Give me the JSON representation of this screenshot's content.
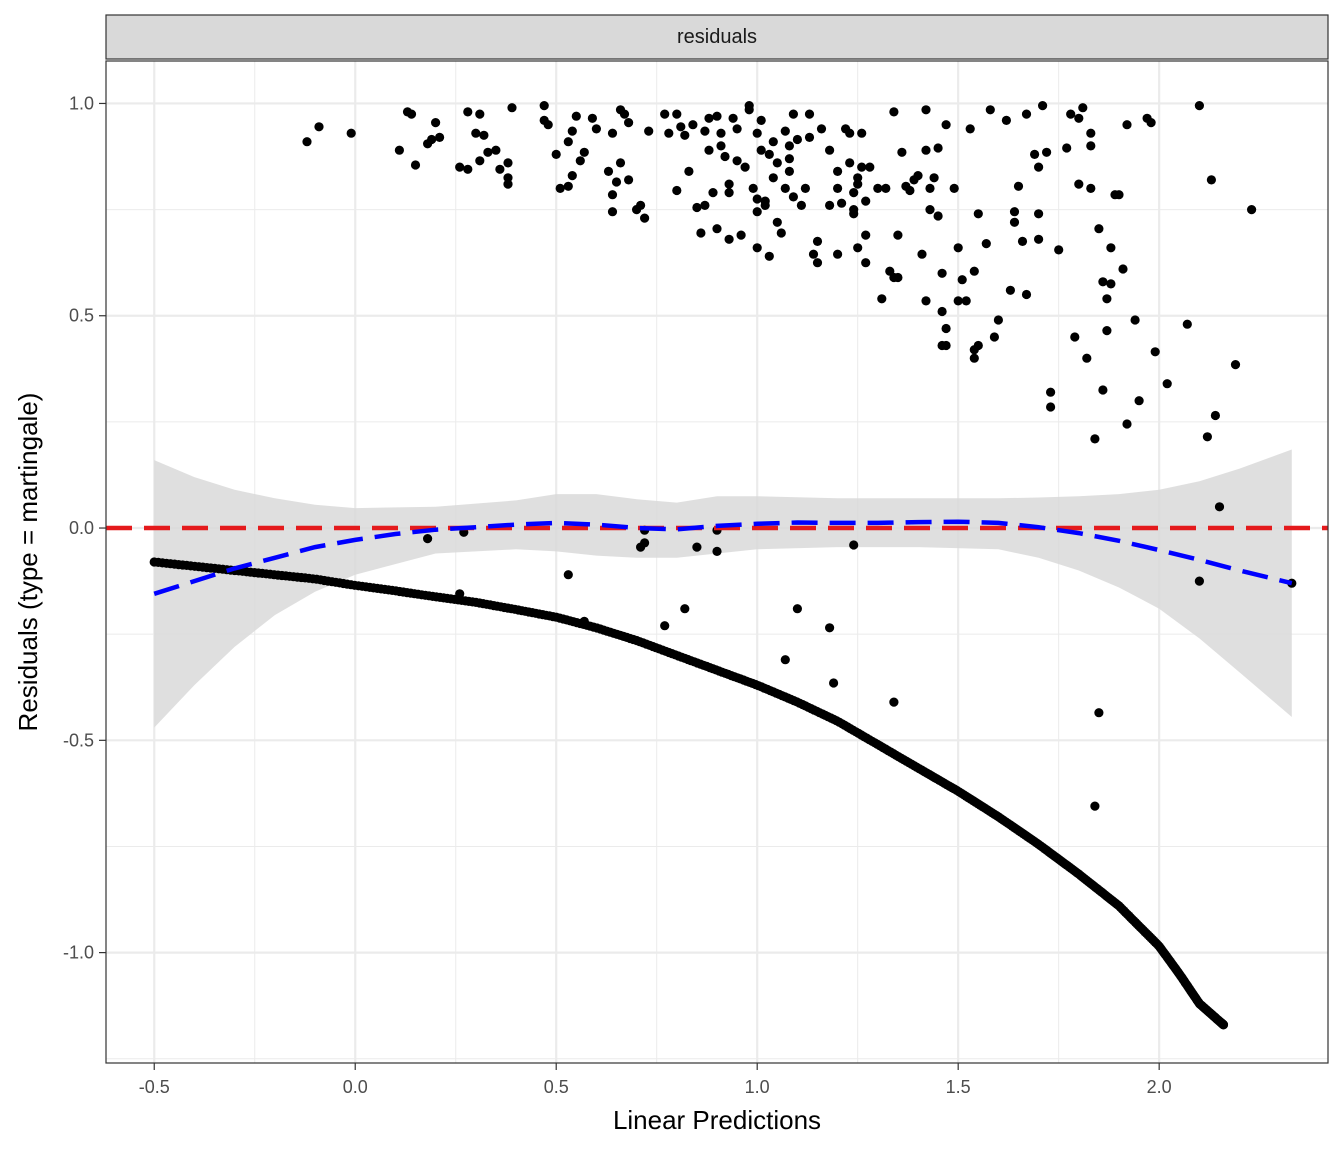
{
  "chart_data": {
    "type": "scatter",
    "panel_label": "residuals",
    "xlabel": "Linear Predictions",
    "ylabel": "Residuals (type = martingale)",
    "xlim": [
      -0.62,
      2.42
    ],
    "ylim": [
      -1.26,
      1.1
    ],
    "x_ticks": [
      -0.5,
      0.0,
      0.5,
      1.0,
      1.5,
      2.0
    ],
    "x_tick_labels": [
      "-0.5",
      "0.0",
      "0.5",
      "1.0",
      "1.5",
      "2.0"
    ],
    "y_ticks": [
      -1.0,
      -0.5,
      0.0,
      0.5,
      1.0
    ],
    "y_tick_labels": [
      "-1.0",
      "-0.5",
      "0.0",
      "0.5",
      "1.0"
    ],
    "grid": true,
    "colors": {
      "points": "#000000",
      "reference_line": "#e41a1c",
      "smooth_line": "#0000ff",
      "confidence_band": "#d9d9d9",
      "strip_background": "#d9d9d9",
      "grid": "#ebebeb"
    },
    "reference_line": {
      "y": 0,
      "style": "dashed"
    },
    "smooth": {
      "style": "dashed",
      "points": [
        [
          -0.5,
          -0.155
        ],
        [
          -0.4,
          -0.125
        ],
        [
          -0.3,
          -0.095
        ],
        [
          -0.2,
          -0.07
        ],
        [
          -0.1,
          -0.045
        ],
        [
          0.0,
          -0.028
        ],
        [
          0.1,
          -0.014
        ],
        [
          0.2,
          -0.004
        ],
        [
          0.3,
          0.002
        ],
        [
          0.4,
          0.008
        ],
        [
          0.5,
          0.012
        ],
        [
          0.6,
          0.008
        ],
        [
          0.7,
          0.0
        ],
        [
          0.8,
          -0.003
        ],
        [
          0.9,
          0.005
        ],
        [
          1.0,
          0.01
        ],
        [
          1.1,
          0.013
        ],
        [
          1.2,
          0.012
        ],
        [
          1.3,
          0.012
        ],
        [
          1.4,
          0.014
        ],
        [
          1.5,
          0.015
        ],
        [
          1.6,
          0.012
        ],
        [
          1.7,
          0.002
        ],
        [
          1.8,
          -0.012
        ],
        [
          1.9,
          -0.03
        ],
        [
          2.0,
          -0.052
        ],
        [
          2.1,
          -0.075
        ],
        [
          2.2,
          -0.1
        ],
        [
          2.33,
          -0.13
        ]
      ],
      "band_upper": [
        [
          -0.5,
          0.16
        ],
        [
          -0.4,
          0.12
        ],
        [
          -0.3,
          0.09
        ],
        [
          -0.2,
          0.07
        ],
        [
          -0.1,
          0.055
        ],
        [
          0.0,
          0.047
        ],
        [
          0.2,
          0.05
        ],
        [
          0.4,
          0.065
        ],
        [
          0.5,
          0.08
        ],
        [
          0.6,
          0.08
        ],
        [
          0.7,
          0.068
        ],
        [
          0.8,
          0.06
        ],
        [
          0.9,
          0.075
        ],
        [
          1.0,
          0.075
        ],
        [
          1.2,
          0.07
        ],
        [
          1.4,
          0.07
        ],
        [
          1.6,
          0.07
        ],
        [
          1.7,
          0.072
        ],
        [
          1.8,
          0.075
        ],
        [
          1.9,
          0.08
        ],
        [
          2.0,
          0.09
        ],
        [
          2.1,
          0.11
        ],
        [
          2.2,
          0.14
        ],
        [
          2.33,
          0.185
        ]
      ],
      "band_lower": [
        [
          -0.5,
          -0.47
        ],
        [
          -0.4,
          -0.37
        ],
        [
          -0.3,
          -0.28
        ],
        [
          -0.2,
          -0.205
        ],
        [
          -0.1,
          -0.15
        ],
        [
          0.0,
          -0.11
        ],
        [
          0.2,
          -0.06
        ],
        [
          0.4,
          -0.05
        ],
        [
          0.5,
          -0.055
        ],
        [
          0.6,
          -0.065
        ],
        [
          0.7,
          -0.07
        ],
        [
          0.8,
          -0.07
        ],
        [
          0.9,
          -0.06
        ],
        [
          1.0,
          -0.05
        ],
        [
          1.2,
          -0.045
        ],
        [
          1.4,
          -0.045
        ],
        [
          1.6,
          -0.05
        ],
        [
          1.7,
          -0.07
        ],
        [
          1.8,
          -0.1
        ],
        [
          1.9,
          -0.14
        ],
        [
          2.0,
          -0.19
        ],
        [
          2.1,
          -0.26
        ],
        [
          2.2,
          -0.34
        ],
        [
          2.33,
          -0.445
        ]
      ]
    },
    "curve_band": {
      "description_points": [
        [
          -0.5,
          -0.08
        ],
        [
          -0.4,
          -0.09
        ],
        [
          -0.3,
          -0.1
        ],
        [
          -0.2,
          -0.11
        ],
        [
          -0.1,
          -0.12
        ],
        [
          0.0,
          -0.135
        ],
        [
          0.1,
          -0.148
        ],
        [
          0.2,
          -0.162
        ],
        [
          0.3,
          -0.175
        ],
        [
          0.4,
          -0.192
        ],
        [
          0.5,
          -0.21
        ],
        [
          0.6,
          -0.235
        ],
        [
          0.7,
          -0.265
        ],
        [
          0.8,
          -0.3
        ],
        [
          0.9,
          -0.335
        ],
        [
          1.0,
          -0.37
        ],
        [
          1.1,
          -0.41
        ],
        [
          1.2,
          -0.455
        ],
        [
          1.3,
          -0.51
        ],
        [
          1.4,
          -0.565
        ],
        [
          1.5,
          -0.62
        ],
        [
          1.6,
          -0.68
        ],
        [
          1.7,
          -0.745
        ],
        [
          1.8,
          -0.815
        ],
        [
          1.9,
          -0.89
        ],
        [
          2.0,
          -0.985
        ],
        [
          2.05,
          -1.05
        ],
        [
          2.1,
          -1.12
        ],
        [
          2.16,
          -1.17
        ]
      ],
      "n": 420
    },
    "points": [
      [
        -0.12,
        0.91
      ],
      [
        -0.09,
        0.945
      ],
      [
        -0.01,
        0.93
      ],
      [
        0.11,
        0.89
      ],
      [
        0.13,
        0.98
      ],
      [
        0.14,
        0.975
      ],
      [
        0.15,
        0.855
      ],
      [
        0.18,
        0.905
      ],
      [
        0.19,
        0.915
      ],
      [
        0.2,
        0.955
      ],
      [
        0.21,
        0.92
      ],
      [
        0.26,
        0.85
      ],
      [
        0.28,
        0.98
      ],
      [
        0.28,
        0.845
      ],
      [
        0.3,
        0.93
      ],
      [
        0.31,
        0.975
      ],
      [
        0.31,
        0.865
      ],
      [
        0.32,
        0.925
      ],
      [
        0.33,
        0.885
      ],
      [
        0.35,
        0.89
      ],
      [
        0.36,
        0.845
      ],
      [
        0.38,
        0.81
      ],
      [
        0.38,
        0.825
      ],
      [
        0.38,
        0.86
      ],
      [
        0.39,
        0.99
      ],
      [
        0.47,
        0.995
      ],
      [
        0.47,
        0.96
      ],
      [
        0.48,
        0.95
      ],
      [
        0.5,
        0.88
      ],
      [
        0.51,
        0.8
      ],
      [
        0.53,
        0.91
      ],
      [
        0.53,
        0.805
      ],
      [
        0.54,
        0.83
      ],
      [
        0.54,
        0.935
      ],
      [
        0.55,
        0.97
      ],
      [
        0.56,
        0.865
      ],
      [
        0.57,
        0.885
      ],
      [
        0.59,
        0.965
      ],
      [
        0.6,
        0.94
      ],
      [
        0.63,
        0.84
      ],
      [
        0.64,
        0.785
      ],
      [
        0.64,
        0.93
      ],
      [
        0.64,
        0.745
      ],
      [
        0.65,
        0.815
      ],
      [
        0.66,
        0.985
      ],
      [
        0.66,
        0.86
      ],
      [
        0.67,
        0.975
      ],
      [
        0.68,
        0.82
      ],
      [
        0.68,
        0.955
      ],
      [
        0.7,
        0.75
      ],
      [
        0.71,
        0.76
      ],
      [
        0.72,
        0.73
      ],
      [
        0.73,
        0.935
      ],
      [
        0.77,
        0.975
      ],
      [
        0.78,
        0.93
      ],
      [
        0.8,
        0.975
      ],
      [
        0.8,
        0.795
      ],
      [
        0.81,
        0.945
      ],
      [
        0.82,
        0.925
      ],
      [
        0.83,
        0.84
      ],
      [
        0.84,
        0.95
      ],
      [
        0.85,
        0.755
      ],
      [
        0.86,
        0.695
      ],
      [
        0.87,
        0.76
      ],
      [
        0.87,
        0.935
      ],
      [
        0.88,
        0.965
      ],
      [
        0.88,
        0.89
      ],
      [
        0.89,
        0.79
      ],
      [
        0.9,
        0.97
      ],
      [
        0.9,
        0.705
      ],
      [
        0.91,
        0.9
      ],
      [
        0.91,
        0.93
      ],
      [
        0.92,
        0.875
      ],
      [
        0.93,
        0.68
      ],
      [
        0.93,
        0.81
      ],
      [
        0.93,
        0.79
      ],
      [
        0.94,
        0.965
      ],
      [
        0.95,
        0.865
      ],
      [
        0.95,
        0.94
      ],
      [
        0.96,
        0.69
      ],
      [
        0.97,
        0.85
      ],
      [
        0.98,
        0.985
      ],
      [
        0.98,
        0.995
      ],
      [
        0.99,
        0.8
      ],
      [
        1.0,
        0.775
      ],
      [
        1.0,
        0.745
      ],
      [
        1.0,
        0.66
      ],
      [
        1.0,
        0.93
      ],
      [
        1.01,
        0.89
      ],
      [
        1.01,
        0.96
      ],
      [
        1.02,
        0.76
      ],
      [
        1.02,
        0.77
      ],
      [
        1.03,
        0.64
      ],
      [
        1.03,
        0.88
      ],
      [
        1.04,
        0.825
      ],
      [
        1.04,
        0.91
      ],
      [
        1.05,
        0.72
      ],
      [
        1.05,
        0.86
      ],
      [
        1.06,
        0.695
      ],
      [
        1.07,
        0.935
      ],
      [
        1.07,
        0.8
      ],
      [
        1.08,
        0.87
      ],
      [
        1.08,
        0.9
      ],
      [
        1.08,
        0.84
      ],
      [
        1.09,
        0.975
      ],
      [
        1.09,
        0.78
      ],
      [
        1.1,
        0.915
      ],
      [
        1.11,
        0.76
      ],
      [
        1.12,
        0.8
      ],
      [
        1.13,
        0.92
      ],
      [
        1.13,
        0.975
      ],
      [
        1.14,
        0.645
      ],
      [
        1.15,
        0.625
      ],
      [
        1.15,
        0.675
      ],
      [
        1.16,
        0.94
      ],
      [
        1.18,
        0.89
      ],
      [
        1.18,
        0.76
      ],
      [
        1.2,
        0.8
      ],
      [
        1.2,
        0.84
      ],
      [
        1.2,
        0.645
      ],
      [
        1.21,
        0.765
      ],
      [
        1.22,
        0.94
      ],
      [
        1.23,
        0.93
      ],
      [
        1.23,
        0.86
      ],
      [
        1.24,
        0.75
      ],
      [
        1.24,
        0.74
      ],
      [
        1.24,
        0.79
      ],
      [
        1.25,
        0.81
      ],
      [
        1.25,
        0.66
      ],
      [
        1.25,
        0.825
      ],
      [
        1.26,
        0.85
      ],
      [
        1.26,
        0.93
      ],
      [
        1.27,
        0.625
      ],
      [
        1.27,
        0.69
      ],
      [
        1.27,
        0.77
      ],
      [
        1.28,
        0.85
      ],
      [
        1.3,
        0.8
      ],
      [
        1.31,
        0.54
      ],
      [
        1.32,
        0.8
      ],
      [
        1.33,
        0.605
      ],
      [
        1.34,
        0.59
      ],
      [
        1.34,
        0.98
      ],
      [
        1.35,
        0.59
      ],
      [
        1.35,
        0.69
      ],
      [
        1.36,
        0.885
      ],
      [
        1.37,
        0.805
      ],
      [
        1.38,
        0.795
      ],
      [
        1.39,
        0.82
      ],
      [
        1.4,
        0.83
      ],
      [
        1.41,
        0.645
      ],
      [
        1.42,
        0.535
      ],
      [
        1.42,
        0.89
      ],
      [
        1.42,
        0.985
      ],
      [
        1.43,
        0.75
      ],
      [
        1.43,
        0.8
      ],
      [
        1.44,
        0.825
      ],
      [
        1.45,
        0.735
      ],
      [
        1.45,
        0.895
      ],
      [
        1.46,
        0.51
      ],
      [
        1.46,
        0.43
      ],
      [
        1.46,
        0.6
      ],
      [
        1.47,
        0.47
      ],
      [
        1.47,
        0.43
      ],
      [
        1.47,
        0.95
      ],
      [
        1.49,
        0.8
      ],
      [
        1.5,
        0.535
      ],
      [
        1.5,
        0.66
      ],
      [
        1.51,
        0.585
      ],
      [
        1.52,
        0.535
      ],
      [
        1.53,
        0.94
      ],
      [
        1.54,
        0.42
      ],
      [
        1.54,
        0.4
      ],
      [
        1.54,
        0.605
      ],
      [
        1.55,
        0.43
      ],
      [
        1.55,
        0.74
      ],
      [
        1.57,
        0.67
      ],
      [
        1.58,
        0.985
      ],
      [
        1.59,
        0.45
      ],
      [
        1.6,
        0.49
      ],
      [
        1.62,
        0.96
      ],
      [
        1.63,
        0.56
      ],
      [
        1.64,
        0.72
      ],
      [
        1.64,
        0.745
      ],
      [
        1.65,
        0.805
      ],
      [
        1.66,
        0.675
      ],
      [
        1.67,
        0.975
      ],
      [
        1.67,
        0.55
      ],
      [
        1.69,
        0.88
      ],
      [
        1.7,
        0.74
      ],
      [
        1.7,
        0.68
      ],
      [
        1.7,
        0.85
      ],
      [
        1.71,
        0.995
      ],
      [
        1.72,
        0.885
      ],
      [
        1.73,
        0.32
      ],
      [
        1.73,
        0.285
      ],
      [
        1.75,
        0.655
      ],
      [
        1.77,
        0.895
      ],
      [
        1.78,
        0.975
      ],
      [
        1.79,
        0.45
      ],
      [
        1.8,
        0.965
      ],
      [
        1.8,
        0.81
      ],
      [
        1.81,
        0.99
      ],
      [
        1.82,
        0.4
      ],
      [
        1.83,
        0.93
      ],
      [
        1.83,
        0.9
      ],
      [
        1.83,
        0.8
      ],
      [
        1.84,
        0.21
      ],
      [
        1.85,
        0.705
      ],
      [
        1.86,
        0.58
      ],
      [
        1.86,
        0.325
      ],
      [
        1.87,
        0.54
      ],
      [
        1.87,
        0.465
      ],
      [
        1.88,
        0.575
      ],
      [
        1.88,
        0.66
      ],
      [
        1.89,
        0.785
      ],
      [
        1.9,
        0.785
      ],
      [
        1.91,
        0.61
      ],
      [
        1.92,
        0.245
      ],
      [
        1.92,
        0.95
      ],
      [
        1.94,
        0.49
      ],
      [
        1.95,
        0.3
      ],
      [
        1.97,
        0.965
      ],
      [
        1.98,
        0.955
      ],
      [
        1.99,
        0.415
      ],
      [
        2.02,
        0.34
      ],
      [
        2.07,
        0.48
      ],
      [
        2.1,
        0.995
      ],
      [
        2.12,
        0.215
      ],
      [
        2.13,
        0.82
      ],
      [
        2.14,
        0.265
      ],
      [
        2.19,
        0.385
      ],
      [
        2.23,
        0.75
      ],
      [
        2.15,
        0.05
      ],
      [
        2.33,
        -0.13
      ],
      [
        2.1,
        -0.125
      ],
      [
        1.85,
        -0.435
      ],
      [
        1.84,
        -0.655
      ],
      [
        1.34,
        -0.41
      ],
      [
        1.19,
        -0.365
      ],
      [
        1.18,
        -0.235
      ],
      [
        1.1,
        -0.19
      ],
      [
        1.07,
        -0.31
      ],
      [
        1.24,
        -0.04
      ],
      [
        0.9,
        -0.055
      ],
      [
        0.9,
        -0.005
      ],
      [
        0.85,
        -0.045
      ],
      [
        0.82,
        -0.19
      ],
      [
        0.77,
        -0.23
      ],
      [
        0.72,
        -0.005
      ],
      [
        0.72,
        -0.035
      ],
      [
        0.71,
        -0.045
      ],
      [
        0.57,
        -0.22
      ],
      [
        0.53,
        -0.11
      ],
      [
        0.27,
        -0.01
      ],
      [
        0.18,
        -0.025
      ],
      [
        0.26,
        -0.155
      ]
    ]
  }
}
